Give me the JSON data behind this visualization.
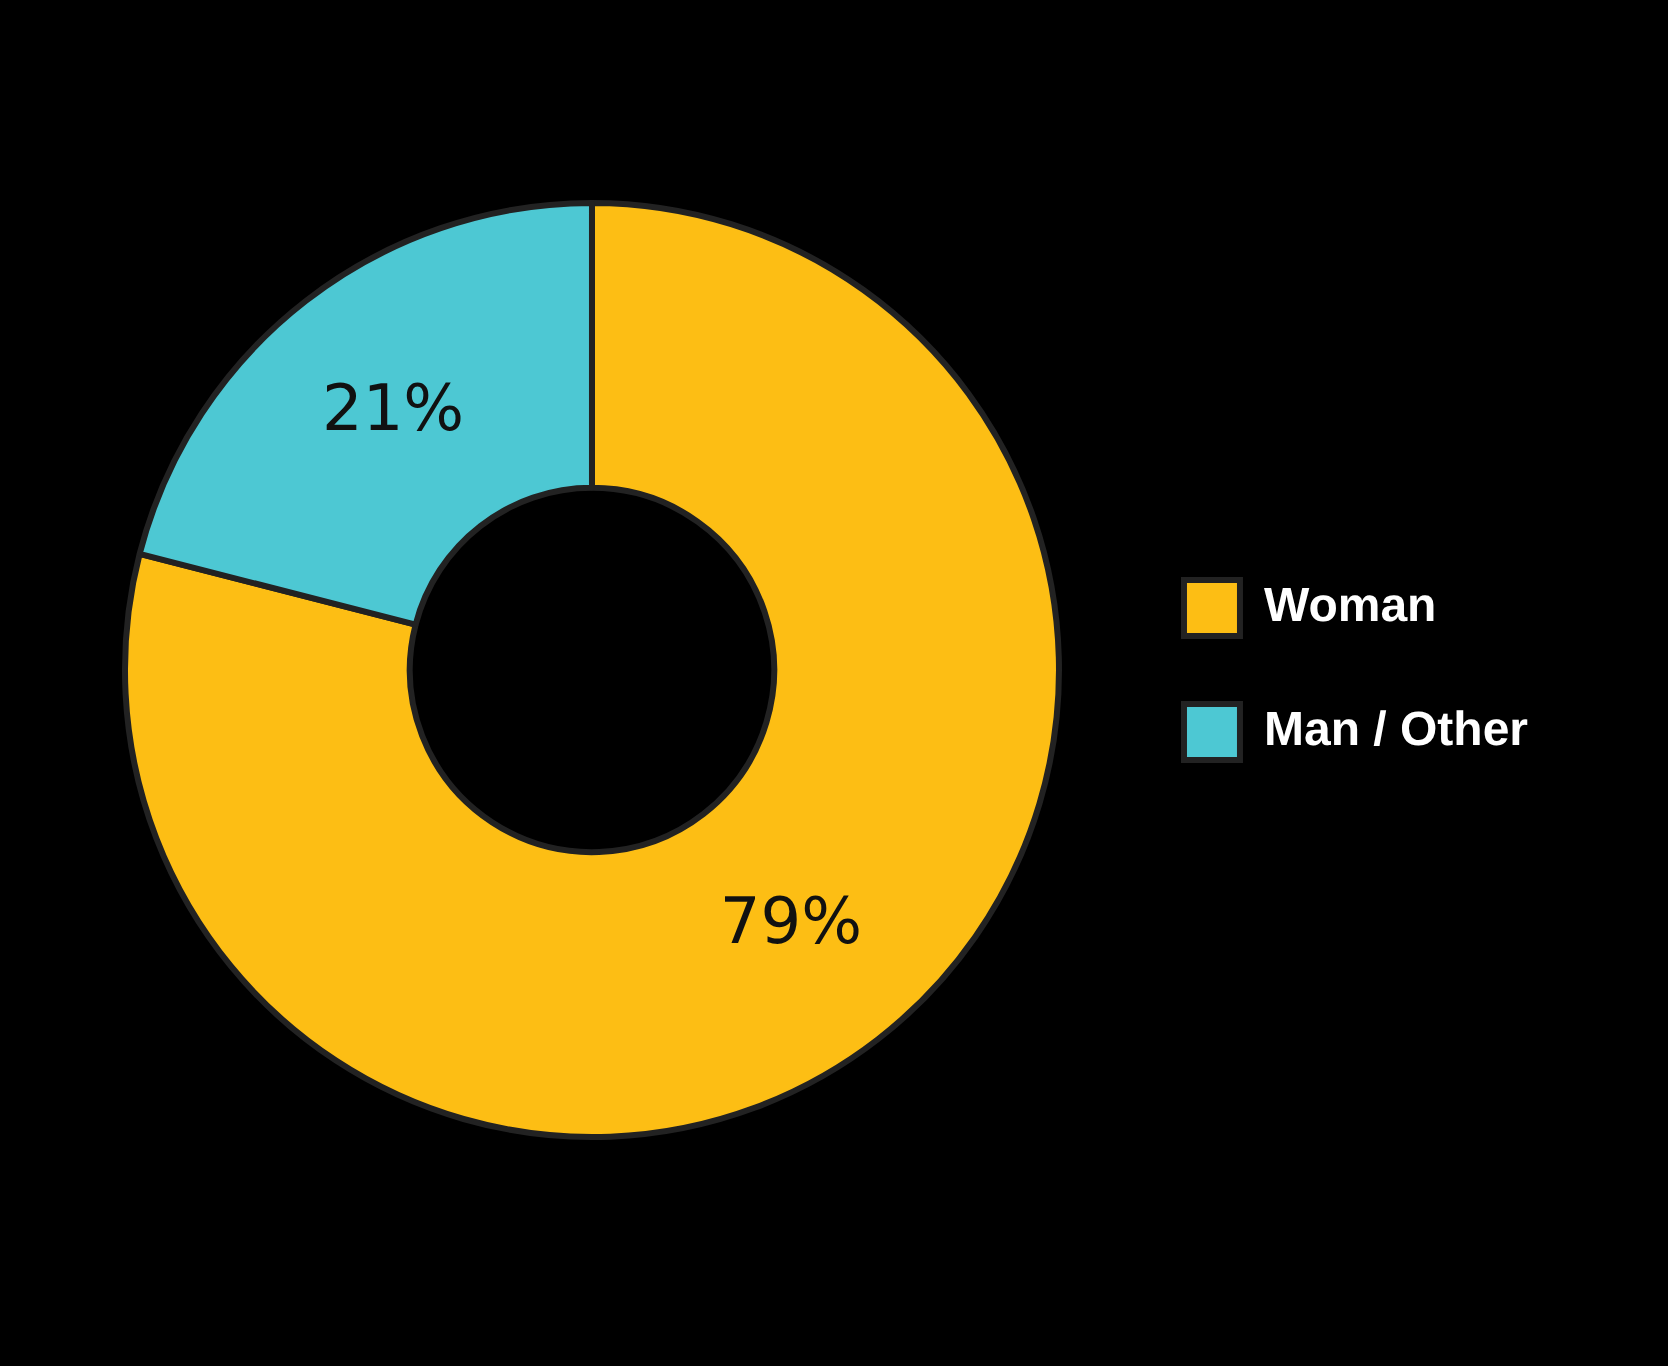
{
  "chart_data": {
    "type": "donut",
    "categories": [
      "Woman",
      "Man / Other"
    ],
    "values": [
      79,
      21
    ],
    "colors": [
      "#fdbe14",
      "#4dc8d3"
    ],
    "value_labels": [
      "79%",
      "21%"
    ],
    "legend": "right"
  }
}
